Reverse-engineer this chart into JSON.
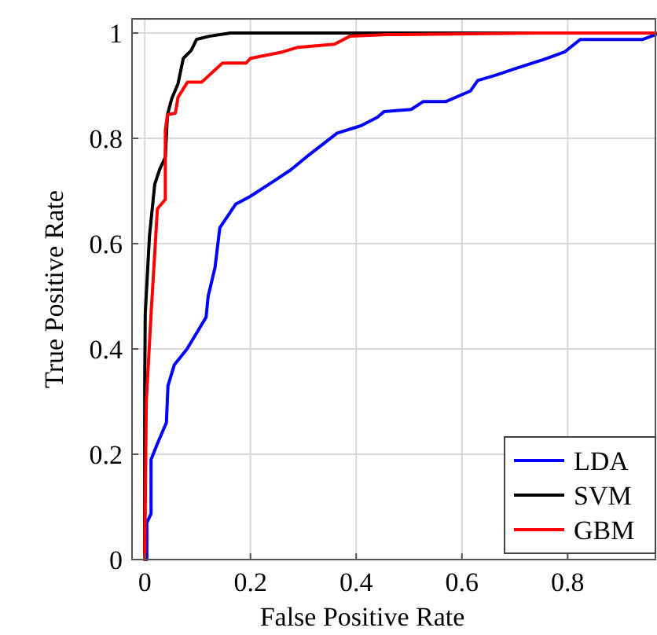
{
  "chart_data": {
    "type": "line",
    "xlabel": "False Positive Rate",
    "ylabel": "True Positive Rate",
    "xlim": [
      -0.024,
      0.966
    ],
    "ylim": [
      0,
      1.027
    ],
    "xticks": [
      0,
      0.2,
      0.4,
      0.6,
      0.8
    ],
    "yticks": [
      0,
      0.2,
      0.4,
      0.6,
      0.8,
      1
    ],
    "grid": true,
    "legend": "bottom right",
    "line_style": "solid",
    "series": [
      {
        "name": "LDA",
        "color": "#0000ff",
        "x": [
          0.004,
          0.004,
          0.012,
          0.012,
          0.024,
          0.041,
          0.044,
          0.056,
          0.08,
          0.116,
          0.12,
          0.133,
          0.142,
          0.172,
          0.2,
          0.246,
          0.276,
          0.305,
          0.364,
          0.409,
          0.44,
          0.453,
          0.504,
          0.527,
          0.57,
          0.616,
          0.63,
          0.664,
          0.705,
          0.755,
          0.794,
          0.824,
          0.942,
          0.966
        ],
        "values": [
          0,
          0.07,
          0.087,
          0.19,
          0.22,
          0.26,
          0.33,
          0.37,
          0.4,
          0.46,
          0.5,
          0.555,
          0.63,
          0.675,
          0.69,
          0.72,
          0.74,
          0.764,
          0.81,
          0.824,
          0.84,
          0.851,
          0.855,
          0.87,
          0.87,
          0.89,
          0.91,
          0.92,
          0.934,
          0.95,
          0.964,
          0.988,
          0.988,
          0.997
        ]
      },
      {
        "name": "SVM",
        "color": "#000000",
        "x": [
          0,
          0,
          0.001,
          0.009,
          0.019,
          0.029,
          0.039,
          0.043,
          0.051,
          0.063,
          0.073,
          0.088,
          0.098,
          0.122,
          0.162,
          0.966
        ],
        "values": [
          0,
          0.33,
          0.466,
          0.615,
          0.713,
          0.743,
          0.764,
          0.845,
          0.875,
          0.904,
          0.952,
          0.967,
          0.988,
          0.994,
          1,
          1
        ]
      },
      {
        "name": "GBM",
        "color": "#ff0000",
        "x": [
          0,
          0.003,
          0.012,
          0.024,
          0.039,
          0.039,
          0.043,
          0.058,
          0.063,
          0.081,
          0.108,
          0.147,
          0.192,
          0.2,
          0.26,
          0.29,
          0.359,
          0.388,
          0.459,
          0.75,
          0.966
        ],
        "values": [
          0,
          0.3,
          0.466,
          0.666,
          0.684,
          0.815,
          0.845,
          0.848,
          0.878,
          0.907,
          0.907,
          0.943,
          0.943,
          0.952,
          0.964,
          0.973,
          0.979,
          0.994,
          0.997,
          1,
          1
        ]
      }
    ]
  }
}
